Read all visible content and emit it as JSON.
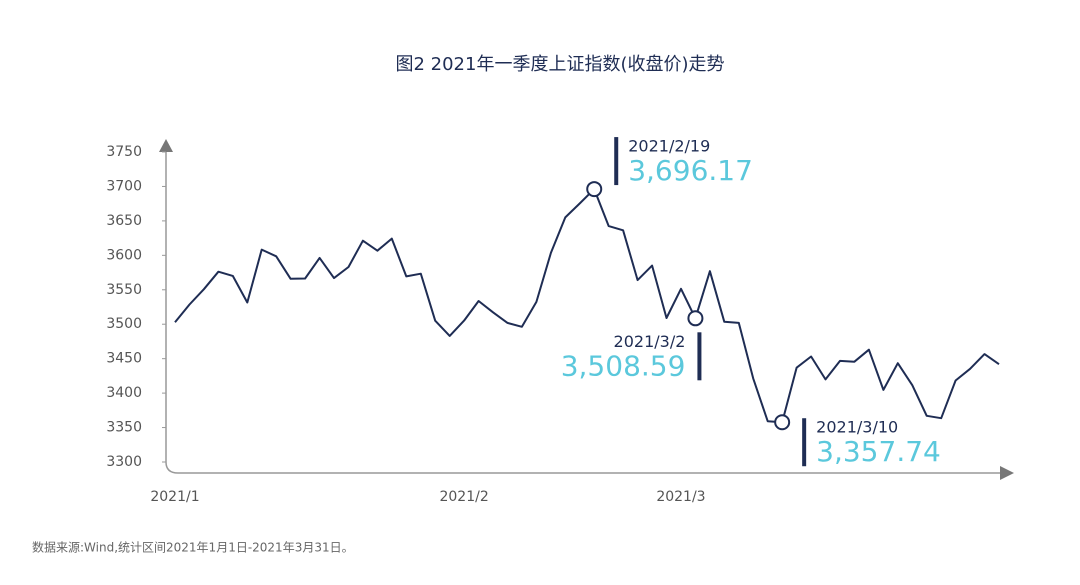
{
  "chart_data": {
    "type": "line",
    "title": "图2 2021年一季度上证指数(收盘价)走势",
    "categories": [
      "2021/1",
      null,
      null,
      null,
      null,
      null,
      null,
      null,
      null,
      null,
      null,
      null,
      null,
      null,
      null,
      null,
      null,
      null,
      null,
      null,
      "2021/2",
      null,
      null,
      null,
      null,
      null,
      null,
      null,
      null,
      null,
      null,
      null,
      null,
      null,
      null,
      "2021/3",
      null,
      null,
      null,
      null,
      null,
      null,
      null,
      null,
      null,
      null,
      null,
      null,
      null,
      null,
      null,
      null,
      null,
      null,
      null,
      null,
      null,
      null
    ],
    "series": [
      {
        "name": "上证指数",
        "color": "#1f2d54",
        "values": [
          3502.96,
          3528.68,
          3550.88,
          3576.2,
          3570.11,
          3531.5,
          3608.34,
          3598.65,
          3565.9,
          3566.38,
          3596.22,
          3566.97,
          3583.09,
          3621.26,
          3606.75,
          3624.24,
          3569.43,
          3573.34,
          3505.18,
          3483.07,
          3505.28,
          3533.68,
          3517.31,
          3501.86,
          3496.33,
          3532.44,
          3603.49,
          3655.09,
          3675.36,
          3696.17,
          3642.44,
          3636.36,
          3564.08,
          3585.05,
          3509.08,
          3551.4,
          3508.59,
          3576.9,
          3503.49,
          3501.99,
          3421.41,
          3359.29,
          3357.74,
          3436.83,
          3453.08,
          3419.95,
          3446.73,
          3445.55,
          3463.07,
          3404.66,
          3443.44,
          3411.51,
          3367.06,
          3363.59,
          3418.33,
          3435.31,
          3456.68,
          3441.91
        ]
      }
    ],
    "ylim": [
      3300,
      3750
    ],
    "yticks": [
      3300,
      3350,
      3400,
      3450,
      3500,
      3550,
      3600,
      3650,
      3700,
      3750
    ],
    "annotations": [
      {
        "date": "2021/2/19",
        "value": 3696.17,
        "value_label": "3,696.17",
        "color": "#5bc8dc"
      },
      {
        "date": "2021/3/2",
        "value": 3508.59,
        "value_label": "3,508.59",
        "color": "#5bc8dc"
      },
      {
        "date": "2021/3/10",
        "value": 3357.74,
        "value_label": "3,357.74",
        "color": "#5bc8dc"
      }
    ],
    "note": "数据来源:Wind,统计区间2021年1月1日-2021年3月31日。"
  }
}
